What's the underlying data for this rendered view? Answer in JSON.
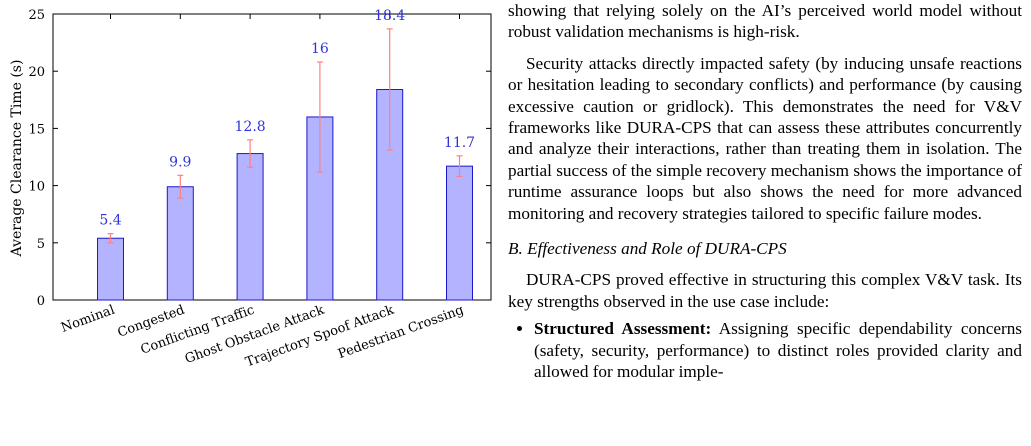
{
  "chart_data": {
    "type": "bar",
    "ylabel": "Average Clearance Time (s)",
    "ylim": [
      0,
      25
    ],
    "yticks": [
      0,
      5,
      10,
      15,
      20,
      25
    ],
    "categories": [
      "Nominal",
      "Congested",
      "Conflicting Traffic",
      "Ghost Obstacle Attack",
      "Trajectory Spoof Attack",
      "Pedestrian Crossing"
    ],
    "values": [
      5.4,
      9.9,
      12.8,
      16.0,
      18.4,
      11.7
    ],
    "value_labels": [
      "5.4",
      "9.9",
      "12.8",
      "16",
      "18.4",
      "11.7"
    ],
    "error_low": [
      5.0,
      8.9,
      11.6,
      11.2,
      13.1,
      10.8
    ],
    "error_high": [
      5.8,
      10.9,
      14.0,
      20.8,
      23.7,
      12.6
    ],
    "colors": {
      "bar_fill": "#b3b3ff",
      "bar_stroke": "#1a1acc",
      "error_bar": "#ff8080",
      "data_label": "#3333dd"
    },
    "grid": false
  },
  "text": {
    "para1": "showing that relying solely on the AI’s perceived world model without robust validation mechanisms is high-risk.",
    "para2": "Security attacks directly impacted safety (by inducing unsafe reactions or hesitation leading to secondary conflicts) and performance (by causing excessive caution or gridlock). This demonstrates the need for V&V frameworks like DURA-CPS that can assess these attributes concurrently and analyze their interactions, rather than treating them in isolation. The partial success of the simple recovery mechanism shows the importance of runtime assurance loops but also shows the need for more advanced monitoring and recovery strategies tailored to specific failure modes.",
    "section_heading": "B. Effectiveness and Role of DURA-CPS",
    "para3": "DURA-CPS proved effective in structuring this complex V&V task. Its key strengths observed in the use case include:",
    "bullet1_lead": "Structured Assessment:",
    "bullet1_text": " Assigning specific dependability concerns (safety, security, performance) to distinct roles provided clarity and allowed for modular imple-"
  }
}
